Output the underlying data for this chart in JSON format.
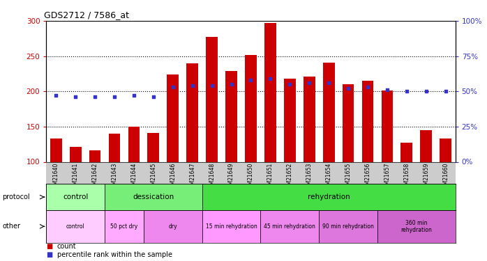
{
  "title": "GDS2712 / 7586_at",
  "samples": [
    "GSM21640",
    "GSM21641",
    "GSM21642",
    "GSM21643",
    "GSM21644",
    "GSM21645",
    "GSM21646",
    "GSM21647",
    "GSM21648",
    "GSM21649",
    "GSM21650",
    "GSM21651",
    "GSM21652",
    "GSM21653",
    "GSM21654",
    "GSM21655",
    "GSM21656",
    "GSM21657",
    "GSM21658",
    "GSM21659",
    "GSM21660"
  ],
  "counts": [
    133,
    121,
    116,
    140,
    150,
    141,
    224,
    240,
    277,
    229,
    252,
    297,
    218,
    221,
    241,
    210,
    215,
    201,
    127,
    145,
    133
  ],
  "percentile_ranks": [
    47,
    46,
    46,
    46,
    47,
    46,
    53,
    54,
    54,
    55,
    58,
    59,
    55,
    56,
    56,
    52,
    53,
    51,
    50,
    50,
    50
  ],
  "bar_color": "#cc0000",
  "dot_color": "#3333cc",
  "ylim_left": [
    100,
    300
  ],
  "ylim_right": [
    0,
    100
  ],
  "yticks_left": [
    100,
    150,
    200,
    250,
    300
  ],
  "yticks_right": [
    0,
    25,
    50,
    75,
    100
  ],
  "protocol_groups": [
    {
      "label": "control",
      "start": 0,
      "end": 3,
      "color": "#aaffaa"
    },
    {
      "label": "dessication",
      "start": 3,
      "end": 8,
      "color": "#77ee77"
    },
    {
      "label": "rehydration",
      "start": 8,
      "end": 21,
      "color": "#44dd44"
    }
  ],
  "other_groups": [
    {
      "label": "control",
      "start": 0,
      "end": 3,
      "color": "#ffccff"
    },
    {
      "label": "50 pct dry",
      "start": 3,
      "end": 5,
      "color": "#ffaaff"
    },
    {
      "label": "dry",
      "start": 5,
      "end": 8,
      "color": "#ee88ee"
    },
    {
      "label": "15 min rehydration",
      "start": 8,
      "end": 11,
      "color": "#ff99ff"
    },
    {
      "label": "45 min rehydration",
      "start": 11,
      "end": 14,
      "color": "#ee88ee"
    },
    {
      "label": "90 min rehydration",
      "start": 14,
      "end": 17,
      "color": "#dd77dd"
    },
    {
      "label": "360 min\nrehydration",
      "start": 17,
      "end": 21,
      "color": "#cc66cc"
    }
  ],
  "xtick_bg": "#cccccc",
  "background_color": "#ffffff"
}
